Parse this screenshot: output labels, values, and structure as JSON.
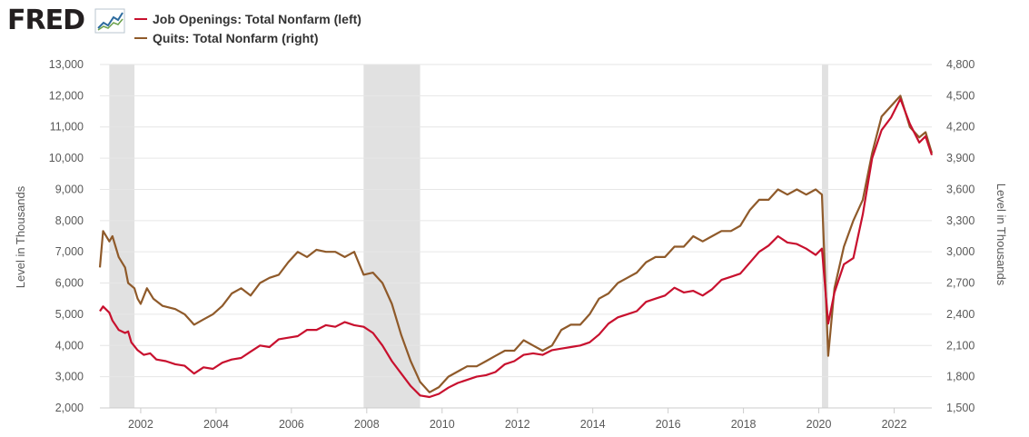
{
  "header": {
    "logo_text": "FRED",
    "logo_icon": "line-chart-icon"
  },
  "colors": {
    "job_openings": "#c8102e",
    "quits": "#8f5a2a",
    "recession": "#e1e1e1",
    "grid": "#e6e6e6",
    "axis_text": "#595959"
  },
  "chart_data": {
    "type": "line",
    "title": "",
    "legend_placement": "top-left",
    "grid": true,
    "x_ticks": [
      "2002",
      "2004",
      "2006",
      "2008",
      "2010",
      "2012",
      "2014",
      "2016",
      "2018",
      "2020",
      "2022"
    ],
    "xlim": [
      "2000-12",
      "2023-01"
    ],
    "recessions": [
      [
        "2001-03",
        "2001-11"
      ],
      [
        "2007-12",
        "2009-06"
      ],
      [
        "2020-02",
        "2020-04"
      ]
    ],
    "left_axis": {
      "label": "Level in Thousands",
      "ylim": [
        2000,
        13000
      ],
      "ticks": [
        "2,000",
        "3,000",
        "4,000",
        "5,000",
        "6,000",
        "7,000",
        "8,000",
        "9,000",
        "10,000",
        "11,000",
        "12,000",
        "13,000"
      ]
    },
    "right_axis": {
      "label": "Level in Thousands",
      "ylim": [
        1500,
        4800
      ],
      "ticks": [
        "1,500",
        "1,800",
        "2,100",
        "2,400",
        "2,700",
        "3,000",
        "3,300",
        "3,600",
        "3,900",
        "4,200",
        "4,500",
        "4,800"
      ]
    },
    "series": [
      {
        "name": "Job Openings: Total Nonfarm (left)",
        "axis": "left",
        "points": [
          [
            "2000-12",
            5100
          ],
          [
            "2001-01",
            5250
          ],
          [
            "2001-03",
            5050
          ],
          [
            "2001-04",
            4800
          ],
          [
            "2001-06",
            4500
          ],
          [
            "2001-08",
            4400
          ],
          [
            "2001-09",
            4450
          ],
          [
            "2001-10",
            4100
          ],
          [
            "2001-12",
            3850
          ],
          [
            "2002-02",
            3700
          ],
          [
            "2002-04",
            3750
          ],
          [
            "2002-06",
            3550
          ],
          [
            "2002-09",
            3500
          ],
          [
            "2002-12",
            3400
          ],
          [
            "2003-03",
            3350
          ],
          [
            "2003-06",
            3100
          ],
          [
            "2003-09",
            3300
          ],
          [
            "2003-12",
            3250
          ],
          [
            "2004-03",
            3450
          ],
          [
            "2004-06",
            3550
          ],
          [
            "2004-09",
            3600
          ],
          [
            "2004-12",
            3800
          ],
          [
            "2005-03",
            4000
          ],
          [
            "2005-06",
            3950
          ],
          [
            "2005-09",
            4200
          ],
          [
            "2005-12",
            4250
          ],
          [
            "2006-03",
            4300
          ],
          [
            "2006-06",
            4500
          ],
          [
            "2006-09",
            4500
          ],
          [
            "2006-12",
            4650
          ],
          [
            "2007-03",
            4600
          ],
          [
            "2007-06",
            4750
          ],
          [
            "2007-09",
            4650
          ],
          [
            "2007-12",
            4600
          ],
          [
            "2008-03",
            4400
          ],
          [
            "2008-06",
            4000
          ],
          [
            "2008-09",
            3500
          ],
          [
            "2008-12",
            3100
          ],
          [
            "2009-03",
            2700
          ],
          [
            "2009-06",
            2400
          ],
          [
            "2009-09",
            2350
          ],
          [
            "2009-12",
            2450
          ],
          [
            "2010-03",
            2650
          ],
          [
            "2010-06",
            2800
          ],
          [
            "2010-09",
            2900
          ],
          [
            "2010-12",
            3000
          ],
          [
            "2011-03",
            3050
          ],
          [
            "2011-06",
            3150
          ],
          [
            "2011-09",
            3400
          ],
          [
            "2011-12",
            3500
          ],
          [
            "2012-03",
            3700
          ],
          [
            "2012-06",
            3750
          ],
          [
            "2012-09",
            3700
          ],
          [
            "2012-12",
            3850
          ],
          [
            "2013-03",
            3900
          ],
          [
            "2013-06",
            3950
          ],
          [
            "2013-09",
            4000
          ],
          [
            "2013-12",
            4100
          ],
          [
            "2014-03",
            4350
          ],
          [
            "2014-06",
            4700
          ],
          [
            "2014-09",
            4900
          ],
          [
            "2014-12",
            5000
          ],
          [
            "2015-03",
            5100
          ],
          [
            "2015-06",
            5400
          ],
          [
            "2015-09",
            5500
          ],
          [
            "2015-12",
            5600
          ],
          [
            "2016-03",
            5850
          ],
          [
            "2016-06",
            5700
          ],
          [
            "2016-09",
            5750
          ],
          [
            "2016-12",
            5600
          ],
          [
            "2017-03",
            5800
          ],
          [
            "2017-06",
            6100
          ],
          [
            "2017-09",
            6200
          ],
          [
            "2017-12",
            6300
          ],
          [
            "2018-03",
            6650
          ],
          [
            "2018-06",
            7000
          ],
          [
            "2018-09",
            7200
          ],
          [
            "2018-12",
            7500
          ],
          [
            "2019-03",
            7300
          ],
          [
            "2019-06",
            7250
          ],
          [
            "2019-09",
            7100
          ],
          [
            "2019-12",
            6900
          ],
          [
            "2020-02",
            7100
          ],
          [
            "2020-04",
            4700
          ],
          [
            "2020-06",
            5700
          ],
          [
            "2020-09",
            6600
          ],
          [
            "2020-12",
            6800
          ],
          [
            "2021-03",
            8200
          ],
          [
            "2021-06",
            10000
          ],
          [
            "2021-09",
            10900
          ],
          [
            "2021-12",
            11300
          ],
          [
            "2022-03",
            11900
          ],
          [
            "2022-06",
            11100
          ],
          [
            "2022-09",
            10500
          ],
          [
            "2022-11",
            10700
          ],
          [
            "2022-12",
            10400
          ],
          [
            "2023-01",
            10100
          ]
        ]
      },
      {
        "name": "Quits: Total Nonfarm (right)",
        "axis": "right",
        "points": [
          [
            "2000-12",
            2850
          ],
          [
            "2001-01",
            3200
          ],
          [
            "2001-03",
            3100
          ],
          [
            "2001-04",
            3150
          ],
          [
            "2001-06",
            2950
          ],
          [
            "2001-08",
            2850
          ],
          [
            "2001-09",
            2700
          ],
          [
            "2001-11",
            2650
          ],
          [
            "2001-12",
            2550
          ],
          [
            "2002-01",
            2500
          ],
          [
            "2002-03",
            2650
          ],
          [
            "2002-05",
            2550
          ],
          [
            "2002-08",
            2480
          ],
          [
            "2002-12",
            2450
          ],
          [
            "2003-03",
            2400
          ],
          [
            "2003-06",
            2300
          ],
          [
            "2003-09",
            2350
          ],
          [
            "2003-12",
            2400
          ],
          [
            "2004-03",
            2480
          ],
          [
            "2004-06",
            2600
          ],
          [
            "2004-09",
            2650
          ],
          [
            "2004-12",
            2580
          ],
          [
            "2005-03",
            2700
          ],
          [
            "2005-06",
            2750
          ],
          [
            "2005-09",
            2780
          ],
          [
            "2005-12",
            2900
          ],
          [
            "2006-03",
            3000
          ],
          [
            "2006-06",
            2950
          ],
          [
            "2006-09",
            3020
          ],
          [
            "2006-12",
            3000
          ],
          [
            "2007-03",
            3000
          ],
          [
            "2007-06",
            2950
          ],
          [
            "2007-09",
            3000
          ],
          [
            "2007-12",
            2780
          ],
          [
            "2008-03",
            2800
          ],
          [
            "2008-06",
            2700
          ],
          [
            "2008-09",
            2500
          ],
          [
            "2008-12",
            2200
          ],
          [
            "2009-03",
            1950
          ],
          [
            "2009-06",
            1750
          ],
          [
            "2009-09",
            1650
          ],
          [
            "2009-12",
            1700
          ],
          [
            "2010-03",
            1800
          ],
          [
            "2010-06",
            1850
          ],
          [
            "2010-09",
            1900
          ],
          [
            "2010-12",
            1900
          ],
          [
            "2011-03",
            1950
          ],
          [
            "2011-06",
            2000
          ],
          [
            "2011-09",
            2050
          ],
          [
            "2011-12",
            2050
          ],
          [
            "2012-03",
            2150
          ],
          [
            "2012-06",
            2100
          ],
          [
            "2012-09",
            2050
          ],
          [
            "2012-12",
            2100
          ],
          [
            "2013-03",
            2250
          ],
          [
            "2013-06",
            2300
          ],
          [
            "2013-09",
            2300
          ],
          [
            "2013-12",
            2400
          ],
          [
            "2014-03",
            2550
          ],
          [
            "2014-06",
            2600
          ],
          [
            "2014-09",
            2700
          ],
          [
            "2014-12",
            2750
          ],
          [
            "2015-03",
            2800
          ],
          [
            "2015-06",
            2900
          ],
          [
            "2015-09",
            2950
          ],
          [
            "2015-12",
            2950
          ],
          [
            "2016-03",
            3050
          ],
          [
            "2016-06",
            3050
          ],
          [
            "2016-09",
            3150
          ],
          [
            "2016-12",
            3100
          ],
          [
            "2017-03",
            3150
          ],
          [
            "2017-06",
            3200
          ],
          [
            "2017-09",
            3200
          ],
          [
            "2017-12",
            3250
          ],
          [
            "2018-03",
            3400
          ],
          [
            "2018-06",
            3500
          ],
          [
            "2018-09",
            3500
          ],
          [
            "2018-12",
            3600
          ],
          [
            "2019-03",
            3550
          ],
          [
            "2019-06",
            3600
          ],
          [
            "2019-09",
            3550
          ],
          [
            "2019-12",
            3600
          ],
          [
            "2020-02",
            3550
          ],
          [
            "2020-04",
            2000
          ],
          [
            "2020-06",
            2650
          ],
          [
            "2020-09",
            3050
          ],
          [
            "2020-12",
            3300
          ],
          [
            "2021-03",
            3500
          ],
          [
            "2021-06",
            3950
          ],
          [
            "2021-09",
            4300
          ],
          [
            "2021-12",
            4400
          ],
          [
            "2022-03",
            4500
          ],
          [
            "2022-06",
            4200
          ],
          [
            "2022-09",
            4100
          ],
          [
            "2022-11",
            4150
          ],
          [
            "2022-12",
            4050
          ],
          [
            "2023-01",
            3950
          ]
        ]
      }
    ]
  }
}
